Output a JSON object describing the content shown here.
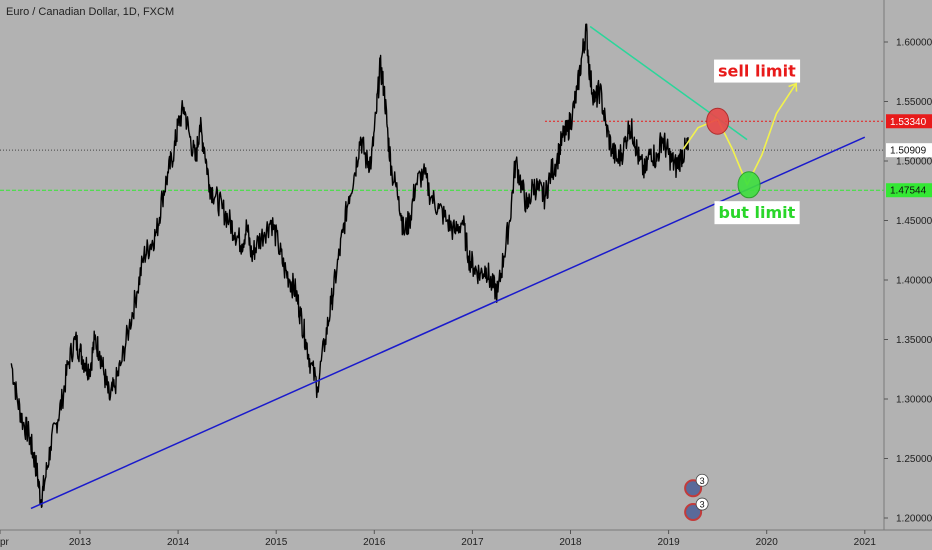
{
  "header": {
    "symbol_title": "Euro / Canadian Dollar, 1D, FXCM"
  },
  "colors": {
    "background": "#b2b2b2",
    "price": "#000000",
    "trendline": "#1a1acc",
    "resistance": "#2ad69a",
    "sell_line": "#e81a1a",
    "buy_line": "#33e833",
    "current_line": "#444444",
    "scenario": "#f2f24d",
    "sell_marker": "#e84848",
    "buy_marker": "#3ee03e"
  },
  "chart_data": {
    "type": "line",
    "x_range": [
      2012.3,
      2021.2
    ],
    "ylim": [
      1.19,
      1.635
    ],
    "x_tick_labels": [
      {
        "x": 2012.3,
        "label": "pr"
      },
      {
        "x": 2013,
        "label": "2013"
      },
      {
        "x": 2014,
        "label": "2014"
      },
      {
        "x": 2015,
        "label": "2015"
      },
      {
        "x": 2016,
        "label": "2016"
      },
      {
        "x": 2017,
        "label": "2017"
      },
      {
        "x": 2018,
        "label": "2018"
      },
      {
        "x": 2019,
        "label": "2019"
      },
      {
        "x": 2020,
        "label": "2020"
      },
      {
        "x": 2021,
        "label": "2021"
      }
    ],
    "y_ticks": [
      1.2,
      1.25,
      1.3,
      1.35,
      1.4,
      1.45,
      1.5,
      1.55,
      1.6
    ],
    "y_tick_labels": [
      "1.20000",
      "1.25000",
      "1.30000",
      "1.35000",
      "1.40000",
      "1.45000",
      "1.50000",
      "1.55000",
      "1.60000"
    ],
    "series": [
      {
        "x": [
          2012.3,
          2012.36,
          2012.42,
          2012.48,
          2012.52,
          2012.56,
          2012.6,
          2012.64,
          2012.7,
          2012.76,
          2012.82,
          2012.88,
          2012.95,
          2013.0,
          2013.05,
          2013.1,
          2013.15,
          2013.2,
          2013.25,
          2013.3,
          2013.35,
          2013.42,
          2013.5,
          2013.58,
          2013.65,
          2013.72,
          2013.78,
          2013.84,
          2013.9,
          2013.96,
          2014.0,
          2014.06,
          2014.12,
          2014.18,
          2014.22,
          2014.27,
          2014.32,
          2014.38,
          2014.45,
          2014.52,
          2014.58,
          2014.65,
          2014.7,
          2014.75,
          2014.8,
          2014.88,
          2014.95,
          2015.02,
          2015.08,
          2015.14,
          2015.2,
          2015.25,
          2015.3,
          2015.35,
          2015.42,
          2015.5,
          2015.56,
          2015.62,
          2015.68,
          2015.74,
          2015.8,
          2015.86,
          2015.92,
          2015.97,
          2016.02,
          2016.06,
          2016.1,
          2016.14,
          2016.18,
          2016.25,
          2016.3,
          2016.36,
          2016.42,
          2016.5,
          2016.58,
          2016.66,
          2016.74,
          2016.82,
          2016.9,
          2016.96,
          2017.02,
          2017.08,
          2017.14,
          2017.2,
          2017.26,
          2017.32,
          2017.38,
          2017.44,
          2017.5,
          2017.56,
          2017.62,
          2017.68,
          2017.74,
          2017.8,
          2017.86,
          2017.92,
          2017.97,
          2018.02,
          2018.07,
          2018.12,
          2018.16,
          2018.2,
          2018.25,
          2018.3,
          2018.36,
          2018.42,
          2018.48,
          2018.54,
          2018.6,
          2018.65,
          2018.7,
          2018.76,
          2018.82,
          2018.88,
          2018.93,
          2018.98,
          2019.03,
          2019.08,
          2019.13,
          2019.18,
          2019.2
        ],
        "values": [
          1.33,
          1.3,
          1.28,
          1.27,
          1.255,
          1.24,
          1.215,
          1.23,
          1.26,
          1.28,
          1.3,
          1.33,
          1.35,
          1.34,
          1.33,
          1.325,
          1.35,
          1.34,
          1.32,
          1.3,
          1.31,
          1.33,
          1.36,
          1.39,
          1.42,
          1.43,
          1.44,
          1.47,
          1.49,
          1.51,
          1.53,
          1.545,
          1.52,
          1.5,
          1.53,
          1.51,
          1.48,
          1.47,
          1.46,
          1.45,
          1.44,
          1.43,
          1.445,
          1.42,
          1.43,
          1.44,
          1.45,
          1.43,
          1.41,
          1.4,
          1.39,
          1.37,
          1.35,
          1.33,
          1.31,
          1.35,
          1.38,
          1.41,
          1.44,
          1.47,
          1.49,
          1.52,
          1.5,
          1.5,
          1.54,
          1.58,
          1.56,
          1.52,
          1.49,
          1.47,
          1.44,
          1.45,
          1.48,
          1.49,
          1.47,
          1.46,
          1.45,
          1.44,
          1.45,
          1.42,
          1.41,
          1.405,
          1.41,
          1.395,
          1.39,
          1.42,
          1.45,
          1.5,
          1.48,
          1.46,
          1.48,
          1.475,
          1.47,
          1.49,
          1.5,
          1.52,
          1.525,
          1.54,
          1.56,
          1.59,
          1.61,
          1.57,
          1.55,
          1.56,
          1.53,
          1.51,
          1.5,
          1.51,
          1.53,
          1.52,
          1.5,
          1.49,
          1.51,
          1.5,
          1.52,
          1.51,
          1.5,
          1.495,
          1.505,
          1.51,
          1.509
        ]
      }
    ],
    "horizontal_lines": [
      {
        "name": "sell",
        "y": 1.5334,
        "style": "dotted"
      },
      {
        "name": "buy",
        "y": 1.47544,
        "style": "dashed"
      },
      {
        "name": "current",
        "y": 1.50909,
        "style": "dotted"
      }
    ],
    "trendlines": [
      {
        "name": "support",
        "points": [
          [
            2012.5,
            1.208
          ],
          [
            2021.0,
            1.52
          ]
        ]
      },
      {
        "name": "resistance",
        "points": [
          [
            2018.2,
            1.613
          ],
          [
            2019.8,
            1.518
          ]
        ]
      }
    ],
    "scenario_path": [
      [
        2019.15,
        1.51
      ],
      [
        2019.3,
        1.528
      ],
      [
        2019.5,
        1.535
      ],
      [
        2019.65,
        1.51
      ],
      [
        2019.8,
        1.48
      ],
      [
        2019.95,
        1.505
      ],
      [
        2020.1,
        1.54
      ],
      [
        2020.3,
        1.565
      ]
    ],
    "markers": [
      {
        "name": "sell",
        "x": 2019.5,
        "y": 1.5334
      },
      {
        "name": "buy",
        "x": 2019.82,
        "y": 1.48
      }
    ],
    "price_tags": [
      {
        "y": 1.50909,
        "label": "1.50909"
      },
      {
        "y": 1.5334,
        "label": "1.53340"
      },
      {
        "y": 1.47544,
        "label": "1.47544"
      }
    ],
    "annotations": [
      {
        "text": "sell limit",
        "x": 2019.9,
        "y": 1.576
      },
      {
        "text": "but limit",
        "x": 2019.9,
        "y": 1.457
      }
    ],
    "event_badges": [
      {
        "x": 2019.25,
        "y": 1.225,
        "count": "3"
      },
      {
        "x": 2019.25,
        "y": 1.205,
        "count": "3"
      }
    ]
  }
}
